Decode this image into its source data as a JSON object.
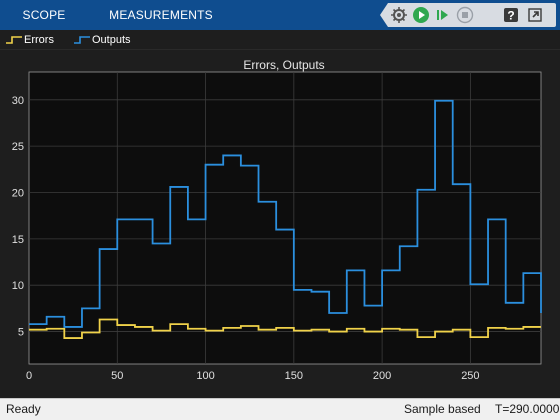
{
  "toolstrip": {
    "tabs": [
      "SCOPE",
      "MEASUREMENTS"
    ],
    "buttons": [
      "settings-icon",
      "run-icon",
      "step-forward-icon",
      "stop-icon",
      "help-icon",
      "undock-icon"
    ]
  },
  "legend": {
    "items": [
      {
        "label": "Errors",
        "color": "#f0d24a"
      },
      {
        "label": "Outputs",
        "color": "#2b8fde"
      }
    ]
  },
  "chart_data": {
    "type": "line",
    "title": "Errors, Outputs",
    "xlabel": "",
    "ylabel": "",
    "xlim": [
      0,
      290
    ],
    "ylim": [
      1.5,
      33
    ],
    "xticks": [
      0,
      50,
      100,
      150,
      200,
      250
    ],
    "yticks": [
      5,
      10,
      15,
      20,
      25,
      30
    ],
    "step": true,
    "grid": true,
    "series": [
      {
        "name": "Errors",
        "color": "#f0d24a",
        "x": [
          0,
          10,
          20,
          30,
          40,
          50,
          60,
          70,
          80,
          90,
          100,
          110,
          120,
          130,
          140,
          150,
          160,
          170,
          180,
          190,
          200,
          210,
          220,
          230,
          240,
          250,
          260,
          270,
          280,
          290
        ],
        "y": [
          5.2,
          5.3,
          4.3,
          4.9,
          6.3,
          5.7,
          5.5,
          5.1,
          5.8,
          5.3,
          5.1,
          5.4,
          5.6,
          5.2,
          5.4,
          5.1,
          5.2,
          5.0,
          5.3,
          5.0,
          5.3,
          5.2,
          4.4,
          5.0,
          5.2,
          4.4,
          5.4,
          5.3,
          5.5,
          5.5
        ]
      },
      {
        "name": "Outputs",
        "color": "#2b8fde",
        "x": [
          0,
          10,
          20,
          30,
          40,
          50,
          60,
          70,
          80,
          90,
          100,
          110,
          120,
          130,
          140,
          150,
          160,
          170,
          180,
          190,
          200,
          210,
          220,
          230,
          240,
          250,
          260,
          270,
          280,
          290
        ],
        "y": [
          5.8,
          6.6,
          5.5,
          7.5,
          13.9,
          17.1,
          17.1,
          14.5,
          20.6,
          17.1,
          23.0,
          24.0,
          22.9,
          19.0,
          16.0,
          9.5,
          9.3,
          7.0,
          11.6,
          7.8,
          11.6,
          14.2,
          20.3,
          29.9,
          20.9,
          10.1,
          17.1,
          8.1,
          11.3,
          7.0
        ]
      }
    ]
  },
  "status": {
    "left": "Ready",
    "mode": "Sample based",
    "time": "T=290.0000"
  }
}
